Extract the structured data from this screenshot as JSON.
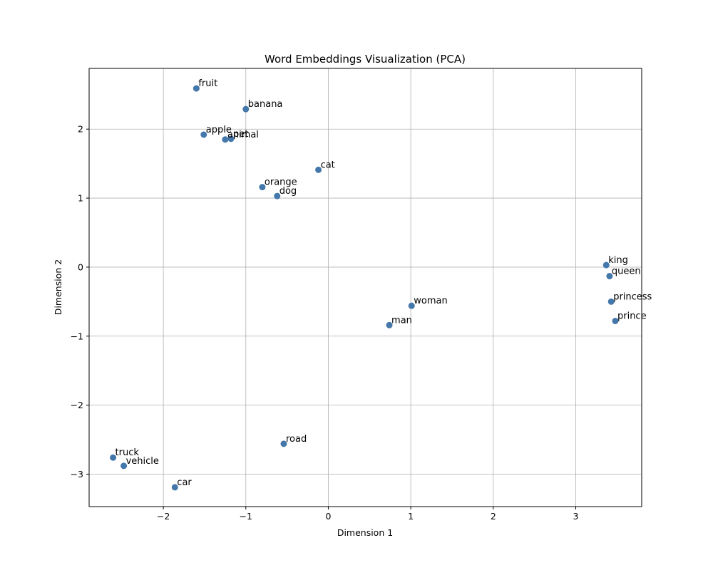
{
  "chart_data": {
    "type": "scatter",
    "title": "Word Embeddings Visualization (PCA)",
    "xlabel": "Dimension 1",
    "ylabel": "Dimension 2",
    "xlim": [
      -2.9,
      3.8
    ],
    "ylim": [
      -3.47,
      2.88
    ],
    "x_ticks": [
      -2,
      -1,
      0,
      1,
      2,
      3
    ],
    "y_ticks": [
      -3,
      -2,
      -1,
      0,
      1,
      2
    ],
    "grid": true,
    "point_color": "#4477aa",
    "points": [
      {
        "label": "fruit",
        "x": -1.6,
        "y": 2.59
      },
      {
        "label": "banana",
        "x": -1.0,
        "y": 2.29
      },
      {
        "label": "apple",
        "x": -1.51,
        "y": 1.92
      },
      {
        "label": "animal",
        "x": -1.25,
        "y": 1.85
      },
      {
        "label": "pet",
        "x": -1.18,
        "y": 1.86
      },
      {
        "label": "cat",
        "x": -0.12,
        "y": 1.41
      },
      {
        "label": "orange",
        "x": -0.8,
        "y": 1.16
      },
      {
        "label": "dog",
        "x": -0.62,
        "y": 1.03
      },
      {
        "label": "king",
        "x": 3.37,
        "y": 0.03
      },
      {
        "label": "queen",
        "x": 3.41,
        "y": -0.13
      },
      {
        "label": "princess",
        "x": 3.43,
        "y": -0.5
      },
      {
        "label": "prince",
        "x": 3.48,
        "y": -0.78
      },
      {
        "label": "woman",
        "x": 1.01,
        "y": -0.56
      },
      {
        "label": "man",
        "x": 0.74,
        "y": -0.84
      },
      {
        "label": "road",
        "x": -0.54,
        "y": -2.56
      },
      {
        "label": "truck",
        "x": -2.61,
        "y": -2.76
      },
      {
        "label": "vehicle",
        "x": -2.48,
        "y": -2.88
      },
      {
        "label": "car",
        "x": -1.86,
        "y": -3.19
      }
    ]
  }
}
